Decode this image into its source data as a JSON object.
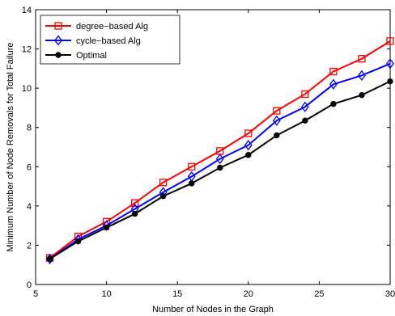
{
  "chart_data": {
    "type": "line",
    "xlabel": "Number of Nodes in the Graph",
    "ylabel": "Minimum Number of Node Removals for Total Failure",
    "xlim": [
      5,
      30
    ],
    "ylim": [
      0,
      14
    ],
    "xticks": [
      5,
      10,
      15,
      20,
      25,
      30
    ],
    "yticks": [
      0,
      2,
      4,
      6,
      8,
      10,
      12,
      14
    ],
    "grid": false,
    "legend_position": "top-left",
    "x": [
      6,
      8,
      10,
      12,
      14,
      16,
      18,
      20,
      22,
      24,
      26,
      28,
      30
    ],
    "series": [
      {
        "name": "degree−based Alg",
        "color": "#ff0000",
        "marker": "square",
        "values": [
          1.35,
          2.45,
          3.2,
          4.15,
          5.2,
          6.0,
          6.8,
          7.7,
          8.85,
          9.7,
          10.85,
          11.5,
          12.4
        ]
      },
      {
        "name": "cycle−based Alg",
        "color": "#0000ff",
        "marker": "diamond",
        "values": [
          1.3,
          2.3,
          3.0,
          3.85,
          4.7,
          5.5,
          6.4,
          7.1,
          8.35,
          9.05,
          10.2,
          10.65,
          11.25
        ]
      },
      {
        "name": "Optimal",
        "color": "#000000",
        "marker": "circle",
        "values": [
          1.3,
          2.2,
          2.9,
          3.6,
          4.5,
          5.15,
          5.95,
          6.6,
          7.6,
          8.35,
          9.2,
          9.65,
          10.35
        ]
      }
    ]
  }
}
